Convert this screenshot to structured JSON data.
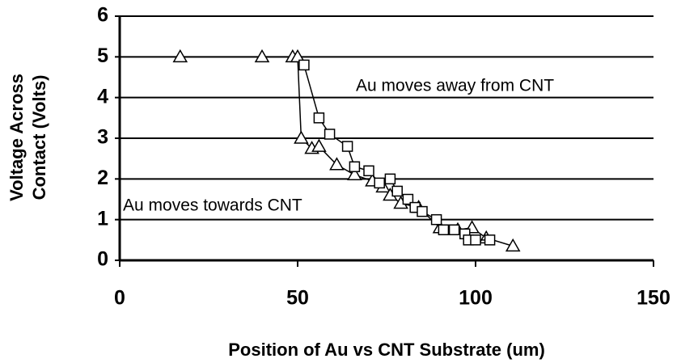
{
  "chart_data": {
    "type": "line",
    "xlabel": "Position of Au vs CNT Substrate (um)",
    "ylabel": [
      "Voltage Across",
      "Contact (Volts)"
    ],
    "annotations": [
      "Au moves away from CNT",
      "Au moves towards CNT"
    ],
    "xlim": [
      0,
      150
    ],
    "xticks": [
      0,
      50,
      100,
      150
    ],
    "ylim": [
      0,
      6
    ],
    "yticks": [
      0,
      1,
      2,
      3,
      4,
      5,
      6
    ],
    "grid": true,
    "series": [
      {
        "marker": "triangle",
        "color": "#000000",
        "x": [
          17,
          40,
          48.6,
          50,
          51,
          54,
          56,
          61,
          66,
          71,
          74,
          76,
          79,
          84,
          90,
          95,
          99,
          103,
          110.5
        ],
        "values": [
          5,
          5,
          5,
          5,
          3,
          2.75,
          2.8,
          2.35,
          2.1,
          1.95,
          1.8,
          1.6,
          1.4,
          1.3,
          0.8,
          0.75,
          0.8,
          0.55,
          0.35
        ]
      },
      {
        "marker": "square",
        "color": "#000000",
        "x": [
          51.8,
          56,
          59,
          64,
          66,
          70,
          73,
          76,
          78,
          81,
          83,
          85,
          89,
          91,
          94,
          97,
          98,
          100,
          104
        ],
        "values": [
          4.8,
          3.5,
          3.1,
          2.8,
          2.3,
          2.2,
          1.9,
          2.0,
          1.7,
          1.5,
          1.3,
          1.2,
          1.0,
          0.75,
          0.75,
          0.65,
          0.5,
          0.5,
          0.5
        ]
      }
    ]
  }
}
